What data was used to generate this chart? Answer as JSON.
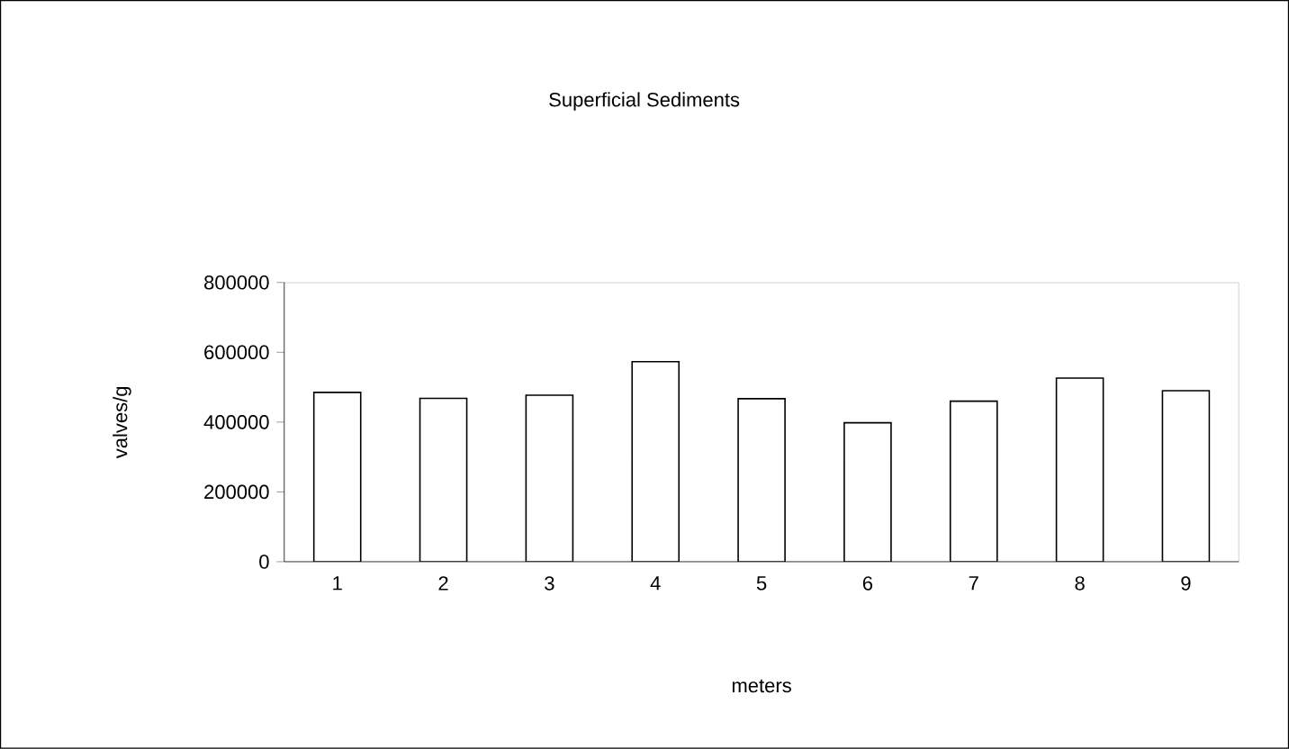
{
  "chart_data": {
    "type": "bar",
    "title": "Superficial Sediments",
    "xlabel": "meters",
    "ylabel": "valves/g",
    "categories": [
      "1",
      "2",
      "3",
      "4",
      "5",
      "6",
      "7",
      "8",
      "9"
    ],
    "values": [
      485000,
      468000,
      477000,
      573000,
      467000,
      398000,
      460000,
      526000,
      490000
    ],
    "color": "#ffffff",
    "ylim": [
      0,
      800000
    ],
    "yticks": [
      0,
      200000,
      400000,
      600000,
      800000
    ],
    "grid": false
  }
}
